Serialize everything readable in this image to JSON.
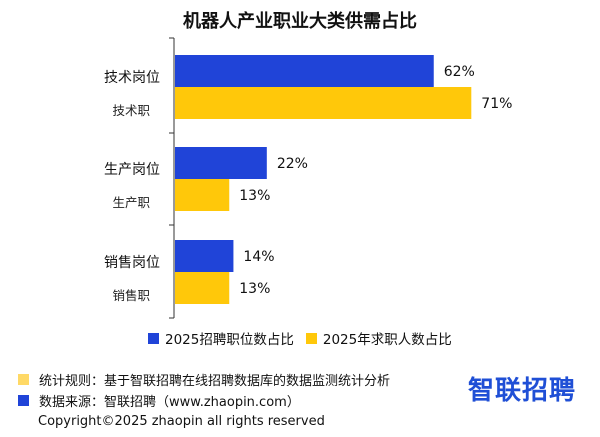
{
  "title": "机器人产业职业大类供需占比",
  "colors": {
    "series1": "#2044d8",
    "series2": "#ffc80a",
    "axis": "#333333",
    "footer_swatch_1": "#ffd966",
    "footer_swatch_2": "#2044d8"
  },
  "chart_data": {
    "type": "bar",
    "orientation": "horizontal",
    "categories": [
      "技术岗位",
      "生产岗位",
      "销售岗位"
    ],
    "sub_labels": [
      "技术职",
      "生产职",
      "销售职"
    ],
    "series": [
      {
        "name": "2025招聘职位数占比",
        "values": [
          62,
          22,
          14
        ]
      },
      {
        "name": "2025年求职人数占比",
        "values": [
          71,
          13,
          13
        ]
      }
    ],
    "value_suffix": "%",
    "xlim": [
      0,
      75
    ],
    "legend_position": "bottom",
    "grid": false
  },
  "footer": {
    "rule": "统计规则：基于智联招聘在线招聘数据库的数据监测统计分析",
    "source": "数据来源：智联招聘（www.zhaopin.com）",
    "copyright": "Copyright©2025 zhaopin all rights reserved",
    "logo": "智联招聘"
  }
}
